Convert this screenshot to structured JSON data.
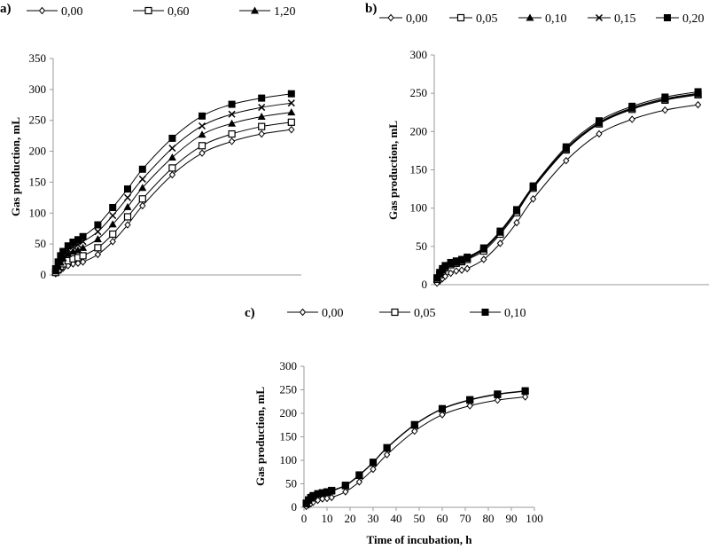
{
  "chart_data": [
    {
      "panel_label": "a)",
      "type": "line",
      "ylabel": "Gas production, mL",
      "xlabel": "",
      "ylim": [
        0,
        350
      ],
      "yticks": [
        0,
        50,
        100,
        150,
        200,
        250,
        300,
        350
      ],
      "xlim": [
        0,
        100
      ],
      "grid": false,
      "legend_placement": "top",
      "x": [
        1,
        2,
        3,
        4,
        6,
        8,
        10,
        12,
        18,
        24,
        30,
        36,
        48,
        60,
        72,
        84,
        96
      ],
      "series": [
        {
          "name": "0,00",
          "marker": "diamond-open",
          "values": [
            2,
            5,
            8,
            11,
            15,
            18,
            19,
            21,
            33,
            54,
            81,
            112,
            162,
            197,
            216,
            228,
            235
          ]
        },
        {
          "name": "0,60",
          "marker": "square-open",
          "values": [
            4,
            9,
            14,
            18,
            23,
            26,
            28,
            31,
            44,
            66,
            94,
            123,
            173,
            209,
            228,
            240,
            247
          ]
        },
        {
          "name": "1,20",
          "marker": "triangle-filled",
          "values": [
            6,
            13,
            20,
            27,
            34,
            38,
            40,
            44,
            58,
            82,
            110,
            141,
            190,
            227,
            245,
            256,
            263
          ]
        },
        {
          "marker": "cross",
          "values": [
            8,
            17,
            26,
            33,
            41,
            46,
            49,
            54,
            70,
            96,
            125,
            155,
            205,
            241,
            260,
            271,
            278
          ]
        },
        {
          "marker": "square-filled",
          "values": [
            10,
            21,
            31,
            38,
            47,
            53,
            57,
            62,
            81,
            109,
            139,
            171,
            221,
            257,
            276,
            286,
            293
          ]
        }
      ]
    },
    {
      "panel_label": "b)",
      "type": "line",
      "ylabel": "Gas production, mL",
      "xlabel": "",
      "ylim": [
        0,
        300
      ],
      "yticks": [
        0,
        50,
        100,
        150,
        200,
        250,
        300
      ],
      "xlim": [
        0,
        100
      ],
      "grid": false,
      "legend_placement": "top",
      "x": [
        1,
        2,
        3,
        4,
        6,
        8,
        10,
        12,
        18,
        24,
        30,
        36,
        48,
        60,
        72,
        84,
        96
      ],
      "series": [
        {
          "name": "0,00",
          "marker": "diamond-open",
          "values": [
            2,
            5,
            8,
            11,
            15,
            18,
            19,
            21,
            33,
            54,
            81,
            112,
            162,
            197,
            216,
            228,
            235
          ]
        },
        {
          "name": "0,05",
          "marker": "square-open",
          "values": [
            7,
            13,
            18,
            22,
            26,
            28,
            30,
            33,
            44,
            66,
            94,
            126,
            176,
            210,
            229,
            241,
            248
          ]
        },
        {
          "name": "0,10",
          "marker": "triangle-filled",
          "values": [
            8,
            14,
            19,
            23,
            27,
            29,
            31,
            34,
            46,
            68,
            96,
            127,
            177,
            211,
            230,
            242,
            249
          ]
        },
        {
          "name": "0,15",
          "marker": "cross",
          "values": [
            8,
            15,
            20,
            24,
            28,
            30,
            32,
            35,
            47,
            69,
            97,
            128,
            178,
            212,
            231,
            243,
            250
          ]
        },
        {
          "name": "0,20",
          "marker": "square-filled",
          "values": [
            9,
            16,
            21,
            25,
            29,
            31,
            33,
            36,
            48,
            70,
            98,
            129,
            180,
            214,
            233,
            245,
            252
          ]
        }
      ]
    },
    {
      "panel_label": "c)",
      "type": "line",
      "ylabel": "Gas production, mL",
      "xlabel": "Time of incubation, h",
      "ylim": [
        0,
        300
      ],
      "yticks": [
        0,
        50,
        100,
        150,
        200,
        250,
        300
      ],
      "xlim": [
        0,
        100
      ],
      "xticks": [
        0,
        10,
        20,
        30,
        40,
        50,
        60,
        70,
        80,
        90,
        100
      ],
      "grid": false,
      "legend_placement": "top",
      "x": [
        1,
        2,
        3,
        4,
        6,
        8,
        10,
        12,
        18,
        24,
        30,
        36,
        48,
        60,
        72,
        84,
        96
      ],
      "series": [
        {
          "name": "0,00",
          "marker": "diamond-open",
          "values": [
            2,
            5,
            8,
            11,
            15,
            18,
            19,
            21,
            33,
            54,
            81,
            112,
            162,
            197,
            216,
            228,
            235
          ]
        },
        {
          "name": "0,05",
          "marker": "square-open",
          "values": [
            8,
            15,
            20,
            24,
            28,
            30,
            32,
            35,
            46,
            68,
            95,
            126,
            175,
            209,
            228,
            240,
            247
          ]
        },
        {
          "name": "0,10",
          "marker": "square-filled",
          "values": [
            9,
            16,
            21,
            25,
            29,
            31,
            33,
            36,
            47,
            69,
            96,
            127,
            176,
            210,
            229,
            241,
            248
          ]
        }
      ]
    }
  ]
}
